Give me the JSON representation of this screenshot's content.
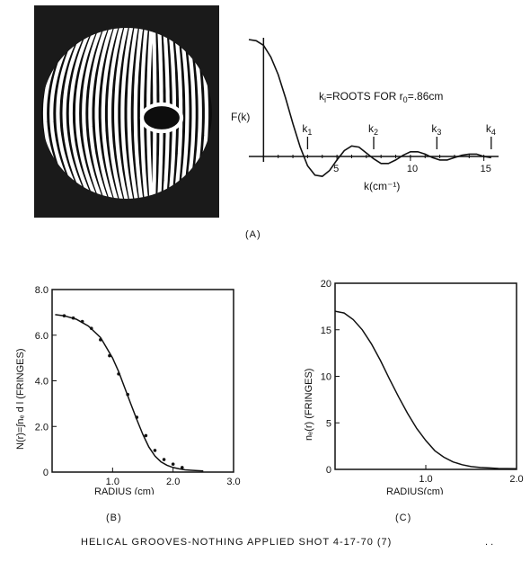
{
  "panels": {
    "interferogram_label": "",
    "a_label": "(A)",
    "b_label": "(B)",
    "c_label": "(C)"
  },
  "footer": {
    "caption": "HELICAL GROOVES-NOTHING APPLIED SHOT 4-17-70 (7)",
    "dots": ". ."
  },
  "chart_data": [
    {
      "type": "line",
      "panel": "A",
      "ylabel": "F(k)",
      "xlabel": "k(cm⁻¹)",
      "annotation": "k_i = ROOTS FOR r_0 = .86 cm",
      "annotation_parts": {
        "k": "k",
        "sub": "i",
        "rest": "=ROOTS FOR r",
        "sub2": "0",
        "value": "=.86cm"
      },
      "xlim": [
        -1,
        16
      ],
      "ylim": [
        -0.25,
        1.0
      ],
      "x_ticks": [
        "5",
        "10",
        "15"
      ],
      "x_tick_values": [
        5,
        10,
        15
      ],
      "roots": [
        {
          "label": "k",
          "sub": "1",
          "x": 3.0
        },
        {
          "label": "k",
          "sub": "2",
          "x": 7.5
        },
        {
          "label": "k",
          "sub": "3",
          "x": 11.8
        },
        {
          "label": "k",
          "sub": "4",
          "x": 15.5
        }
      ],
      "x": [
        -1,
        -0.5,
        0,
        0.5,
        1,
        1.5,
        2,
        2.5,
        3,
        3.5,
        4,
        4.5,
        5,
        5.5,
        6,
        6.5,
        7,
        7.5,
        8,
        8.5,
        9,
        9.5,
        10,
        10.5,
        11,
        11.5,
        12,
        12.5,
        13,
        13.5,
        14,
        14.5,
        15,
        15.5
      ],
      "y": [
        1.0,
        0.99,
        0.95,
        0.85,
        0.7,
        0.5,
        0.28,
        0.08,
        -0.08,
        -0.16,
        -0.17,
        -0.12,
        -0.03,
        0.05,
        0.09,
        0.08,
        0.03,
        -0.02,
        -0.06,
        -0.06,
        -0.03,
        0.01,
        0.04,
        0.04,
        0.02,
        -0.01,
        -0.03,
        -0.03,
        -0.01,
        0.01,
        0.02,
        0.02,
        0.0,
        -0.01
      ]
    },
    {
      "type": "line",
      "panel": "B",
      "ylabel": "N(r)=∫nₑ d l (FRINGES)",
      "xlabel": "RADIUS (cm)",
      "xlim": [
        0,
        3.0
      ],
      "ylim": [
        0,
        8.0
      ],
      "x_ticks": [
        "1.0",
        "2.0",
        "3.0"
      ],
      "x_tick_values": [
        1.0,
        2.0,
        3.0
      ],
      "y_ticks": [
        "0",
        "2.0",
        "4.0",
        "6.0",
        "8.0"
      ],
      "y_tick_values": [
        0,
        2,
        4,
        6,
        8
      ],
      "series": [
        {
          "kind": "line",
          "x": [
            0.05,
            0.2,
            0.4,
            0.6,
            0.8,
            1.0,
            1.1,
            1.2,
            1.3,
            1.4,
            1.5,
            1.6,
            1.7,
            1.8,
            1.9,
            2.0,
            2.1,
            2.2,
            2.3,
            2.5
          ],
          "y": [
            6.9,
            6.85,
            6.7,
            6.4,
            5.9,
            5.0,
            4.4,
            3.7,
            3.0,
            2.3,
            1.65,
            1.1,
            0.7,
            0.45,
            0.3,
            0.2,
            0.14,
            0.1,
            0.08,
            0.05
          ]
        },
        {
          "kind": "points",
          "x": [
            0.2,
            0.35,
            0.5,
            0.65,
            0.8,
            0.95,
            1.1,
            1.25,
            1.4,
            1.55,
            1.7,
            1.85,
            2.0,
            2.15
          ],
          "y": [
            6.85,
            6.75,
            6.6,
            6.3,
            5.8,
            5.1,
            4.3,
            3.4,
            2.4,
            1.6,
            0.95,
            0.55,
            0.35,
            0.2
          ]
        }
      ]
    },
    {
      "type": "line",
      "panel": "C",
      "ylabel": "nₑ(r) (FRINGES)",
      "xlabel": "RADIUS(cm)",
      "xlim": [
        0,
        2.0
      ],
      "ylim": [
        0,
        20
      ],
      "x_ticks": [
        "1.0",
        "2.0"
      ],
      "x_tick_values": [
        1.0,
        2.0
      ],
      "y_ticks": [
        "0",
        "5",
        "10",
        "15",
        "20"
      ],
      "y_tick_values": [
        0,
        5,
        10,
        15,
        20
      ],
      "series": [
        {
          "kind": "line",
          "x": [
            0,
            0.1,
            0.2,
            0.3,
            0.4,
            0.5,
            0.6,
            0.7,
            0.8,
            0.9,
            1.0,
            1.1,
            1.2,
            1.3,
            1.4,
            1.5,
            1.6,
            1.7,
            1.8,
            2.0
          ],
          "y": [
            17.0,
            16.8,
            16.1,
            15.0,
            13.5,
            11.7,
            9.7,
            7.8,
            6.0,
            4.4,
            3.1,
            2.0,
            1.3,
            0.8,
            0.5,
            0.3,
            0.2,
            0.15,
            0.1,
            0.08
          ]
        }
      ]
    }
  ]
}
